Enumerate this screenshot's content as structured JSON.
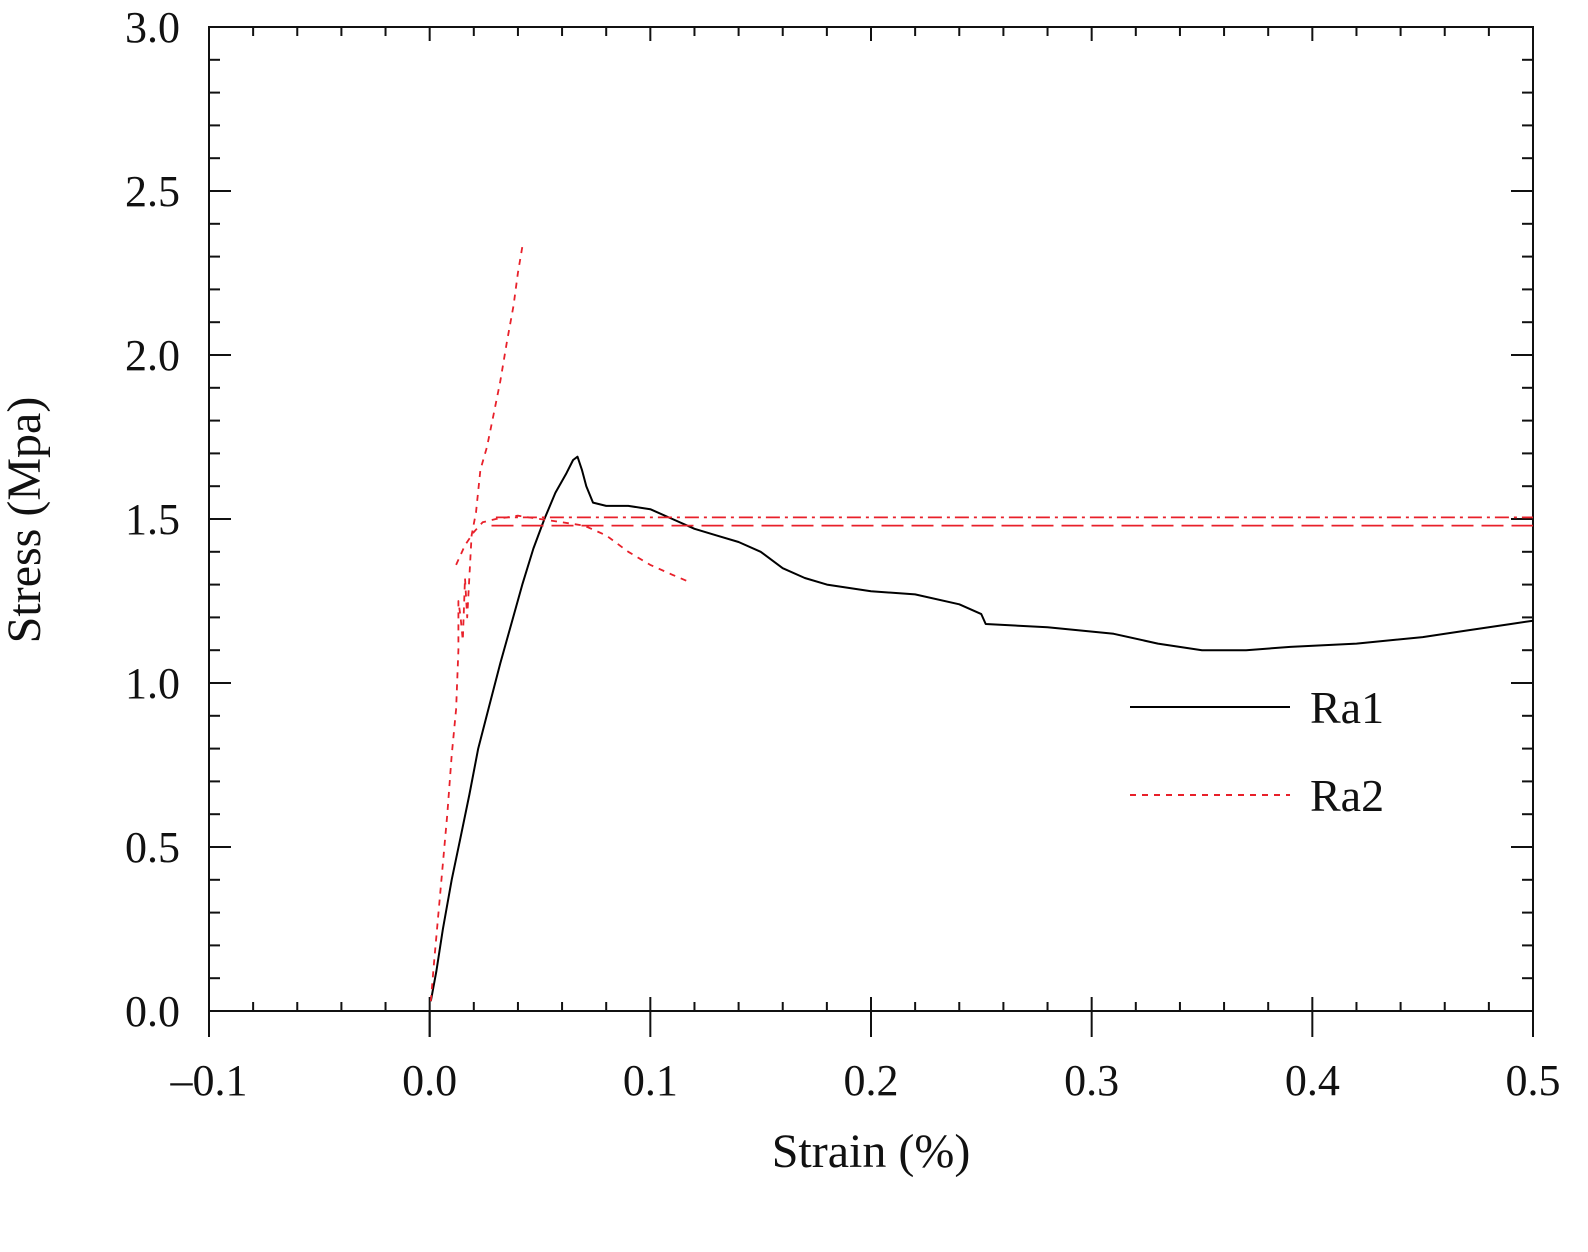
{
  "chart_data": {
    "type": "line",
    "title": "",
    "xlabel": "Strain (%)",
    "ylabel": "Stress (Mpa)",
    "xlim": [
      -0.1,
      0.5
    ],
    "ylim": [
      0.0,
      3.0
    ],
    "x_ticks": [
      -0.1,
      0.0,
      0.1,
      0.2,
      0.3,
      0.4,
      0.5
    ],
    "x_tick_labels": [
      "–0.1",
      "0.0",
      "0.1",
      "0.2",
      "0.3",
      "0.4",
      "0.5"
    ],
    "y_ticks": [
      0.0,
      0.5,
      1.0,
      1.5,
      2.0,
      2.5,
      3.0
    ],
    "y_tick_labels": [
      "0.0",
      "0.5",
      "1.0",
      "1.5",
      "2.0",
      "2.5",
      "3.0"
    ],
    "grid": false,
    "legend_position": "right",
    "series": [
      {
        "name": "Ra1",
        "color": "#000000",
        "style": "solid",
        "points": [
          [
            0.0005,
            0.03
          ],
          [
            0.003,
            0.12
          ],
          [
            0.006,
            0.25
          ],
          [
            0.01,
            0.4
          ],
          [
            0.014,
            0.53
          ],
          [
            0.018,
            0.66
          ],
          [
            0.022,
            0.8
          ],
          [
            0.027,
            0.93
          ],
          [
            0.032,
            1.06
          ],
          [
            0.037,
            1.18
          ],
          [
            0.042,
            1.3
          ],
          [
            0.047,
            1.41
          ],
          [
            0.052,
            1.5
          ],
          [
            0.057,
            1.58
          ],
          [
            0.062,
            1.64
          ],
          [
            0.065,
            1.68
          ],
          [
            0.067,
            1.69
          ],
          [
            0.069,
            1.65
          ],
          [
            0.071,
            1.6
          ],
          [
            0.074,
            1.55
          ],
          [
            0.08,
            1.54
          ],
          [
            0.09,
            1.54
          ],
          [
            0.1,
            1.53
          ],
          [
            0.11,
            1.5
          ],
          [
            0.12,
            1.47
          ],
          [
            0.13,
            1.45
          ],
          [
            0.14,
            1.43
          ],
          [
            0.15,
            1.4
          ],
          [
            0.16,
            1.35
          ],
          [
            0.17,
            1.32
          ],
          [
            0.18,
            1.3
          ],
          [
            0.2,
            1.28
          ],
          [
            0.22,
            1.27
          ],
          [
            0.24,
            1.24
          ],
          [
            0.25,
            1.21
          ],
          [
            0.252,
            1.18
          ],
          [
            0.28,
            1.17
          ],
          [
            0.31,
            1.15
          ],
          [
            0.33,
            1.12
          ],
          [
            0.35,
            1.1
          ],
          [
            0.37,
            1.1
          ],
          [
            0.39,
            1.11
          ],
          [
            0.42,
            1.12
          ],
          [
            0.45,
            1.14
          ],
          [
            0.47,
            1.16
          ],
          [
            0.49,
            1.18
          ],
          [
            0.5,
            1.19
          ]
        ]
      },
      {
        "name": "Ra2",
        "color": "#e8202a",
        "style": "dashed",
        "points": [
          [
            0.0005,
            0.03
          ],
          [
            0.002,
            0.15
          ],
          [
            0.004,
            0.3
          ],
          [
            0.006,
            0.45
          ],
          [
            0.008,
            0.6
          ],
          [
            0.01,
            0.78
          ],
          [
            0.012,
            0.92
          ],
          [
            0.013,
            1.1
          ],
          [
            0.013,
            1.25
          ],
          [
            0.014,
            1.2
          ],
          [
            0.015,
            1.13
          ],
          [
            0.016,
            1.32
          ],
          [
            0.017,
            1.2
          ],
          [
            0.019,
            1.45
          ],
          [
            0.021,
            1.52
          ],
          [
            0.023,
            1.65
          ],
          [
            0.026,
            1.72
          ],
          [
            0.029,
            1.82
          ],
          [
            0.032,
            1.92
          ],
          [
            0.035,
            2.04
          ],
          [
            0.038,
            2.15
          ],
          [
            0.04,
            2.25
          ],
          [
            0.042,
            2.33
          ]
        ]
      },
      {
        "name": "",
        "color": "#e8202a",
        "style": "dashed",
        "points": [
          [
            0.012,
            1.36
          ],
          [
            0.016,
            1.42
          ],
          [
            0.02,
            1.46
          ],
          [
            0.024,
            1.49
          ],
          [
            0.03,
            1.5
          ],
          [
            0.04,
            1.51
          ],
          [
            0.06,
            1.49
          ],
          [
            0.07,
            1.48
          ],
          [
            0.08,
            1.45
          ],
          [
            0.09,
            1.4
          ],
          [
            0.1,
            1.36
          ],
          [
            0.11,
            1.33
          ],
          [
            0.117,
            1.31
          ]
        ]
      },
      {
        "name": "",
        "color": "#e8202a",
        "style": "long-dash",
        "points": [
          [
            0.028,
            1.48
          ],
          [
            0.5,
            1.48
          ]
        ]
      },
      {
        "name": "",
        "color": "#e8202a",
        "style": "dash-dot",
        "points": [
          [
            0.03,
            1.505
          ],
          [
            0.5,
            1.505
          ]
        ]
      }
    ],
    "legend": [
      {
        "label": "Ra1",
        "color": "#000000",
        "style": "solid"
      },
      {
        "label": "Ra2",
        "color": "#e8202a",
        "style": "dashed"
      }
    ]
  }
}
